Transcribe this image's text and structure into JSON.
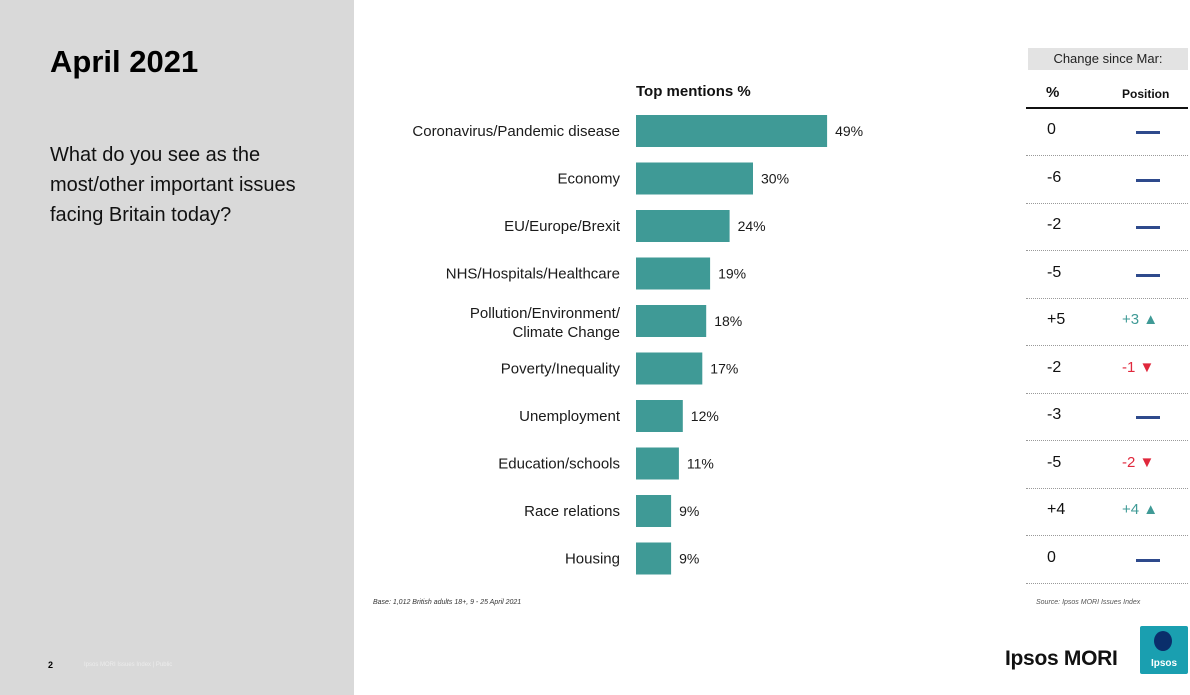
{
  "slide": {
    "title": "April 2021",
    "question": "What do you see as the most/other important issues facing Britain today?",
    "page_number": "2",
    "footer_note": "Ipsos MORI Issues Index | Public"
  },
  "chart_data": {
    "type": "bar",
    "orientation": "horizontal",
    "title": "Top mentions %",
    "categories": [
      "Coronavirus/Pandemic disease",
      "Economy",
      "EU/Europe/Brexit",
      "NHS/Hospitals/Healthcare",
      "Pollution/Environment/ Climate Change",
      "Poverty/Inequality",
      "Unemployment",
      "Education/schools",
      "Race relations",
      "Housing"
    ],
    "values": [
      49,
      30,
      24,
      19,
      18,
      17,
      12,
      11,
      9,
      9
    ],
    "value_labels": [
      "49%",
      "30%",
      "24%",
      "19%",
      "18%",
      "17%",
      "12%",
      "11%",
      "9%",
      "9%"
    ],
    "xlim": [
      0,
      100
    ],
    "bar_color": "#3f9a96",
    "grid": false
  },
  "change_table": {
    "header": "Change since Mar:",
    "col_pct": "%",
    "col_position": "Position",
    "rows": [
      {
        "pct": "0",
        "position": "",
        "dir": "none"
      },
      {
        "pct": "-6",
        "position": "",
        "dir": "none"
      },
      {
        "pct": "-2",
        "position": "",
        "dir": "none"
      },
      {
        "pct": "-5",
        "position": "",
        "dir": "none"
      },
      {
        "pct": "+5",
        "position": "+3 ▲",
        "dir": "up"
      },
      {
        "pct": "-2",
        "position": "-1 ▼",
        "dir": "down"
      },
      {
        "pct": "-3",
        "position": "",
        "dir": "none"
      },
      {
        "pct": "-5",
        "position": "-2 ▼",
        "dir": "down"
      },
      {
        "pct": "+4",
        "position": "+4 ▲",
        "dir": "up"
      },
      {
        "pct": "0",
        "position": "",
        "dir": "none"
      }
    ],
    "colors": {
      "up": "#3f9a96",
      "down": "#e0283c",
      "none": "#2e4a8c"
    }
  },
  "notes": {
    "base": "Base: 1,012 British adults 18+, 9 - 25 April 2021",
    "source": "Source: Ipsos MORI Issues Index"
  },
  "logo": {
    "name": "Ipsos MORI",
    "box_text": "Ipsos"
  }
}
